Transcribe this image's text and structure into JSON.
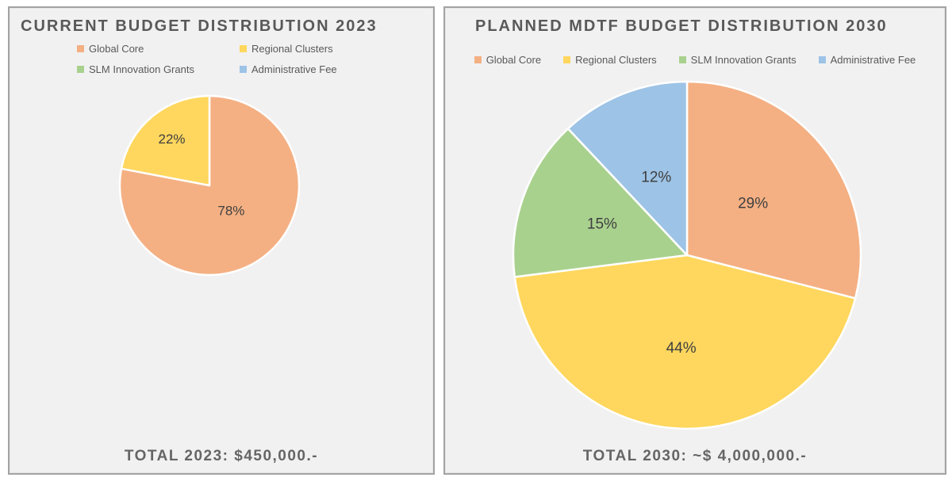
{
  "chart_data": [
    {
      "type": "pie",
      "title": "CURRENT BUDGET DISTRIBUTION 2023",
      "annotation": "TOTAL 2023: $450,000.-",
      "legend_position": "top",
      "legend_layout": "grid-2col",
      "legend": [
        {
          "label": "Global Core",
          "color": "#F4B083"
        },
        {
          "label": "Regional Clusters",
          "color": "#FFD75E"
        },
        {
          "label": "SLM Innovation Grants",
          "color": "#A9D18E"
        },
        {
          "label": "Administrative Fee",
          "color": "#9DC3E6"
        }
      ],
      "slices": [
        {
          "category": "Global Core",
          "value": 78,
          "label": "78%",
          "color": "#F4B083",
          "label_r": 0.38
        },
        {
          "category": "Regional Clusters",
          "value": 22,
          "label": "22%",
          "color": "#FFD75E",
          "label_r": 0.66
        }
      ]
    },
    {
      "type": "pie",
      "title": "PLANNED MDTF BUDGET DISTRIBUTION 2030",
      "annotation": "TOTAL 2030: ~$ 4,000,000.-",
      "legend_position": "top",
      "legend_layout": "row",
      "legend": [
        {
          "label": "Global Core",
          "color": "#F4B083"
        },
        {
          "label": "Regional Clusters",
          "color": "#FFD75E"
        },
        {
          "label": "SLM Innovation Grants",
          "color": "#A9D18E"
        },
        {
          "label": "Administrative Fee",
          "color": "#9DC3E6"
        }
      ],
      "slices": [
        {
          "category": "Global Core",
          "value": 29,
          "label": "29%",
          "color": "#F4B083",
          "label_r": 0.48
        },
        {
          "category": "Regional Clusters",
          "value": 44,
          "label": "44%",
          "color": "#FFD75E",
          "label_r": 0.54
        },
        {
          "category": "SLM Innovation Grants",
          "value": 15,
          "label": "15%",
          "color": "#A9D18E",
          "label_r": 0.52
        },
        {
          "category": "Administrative Fee",
          "value": 12,
          "label": "12%",
          "color": "#9DC3E6",
          "label_r": 0.48
        }
      ]
    }
  ]
}
